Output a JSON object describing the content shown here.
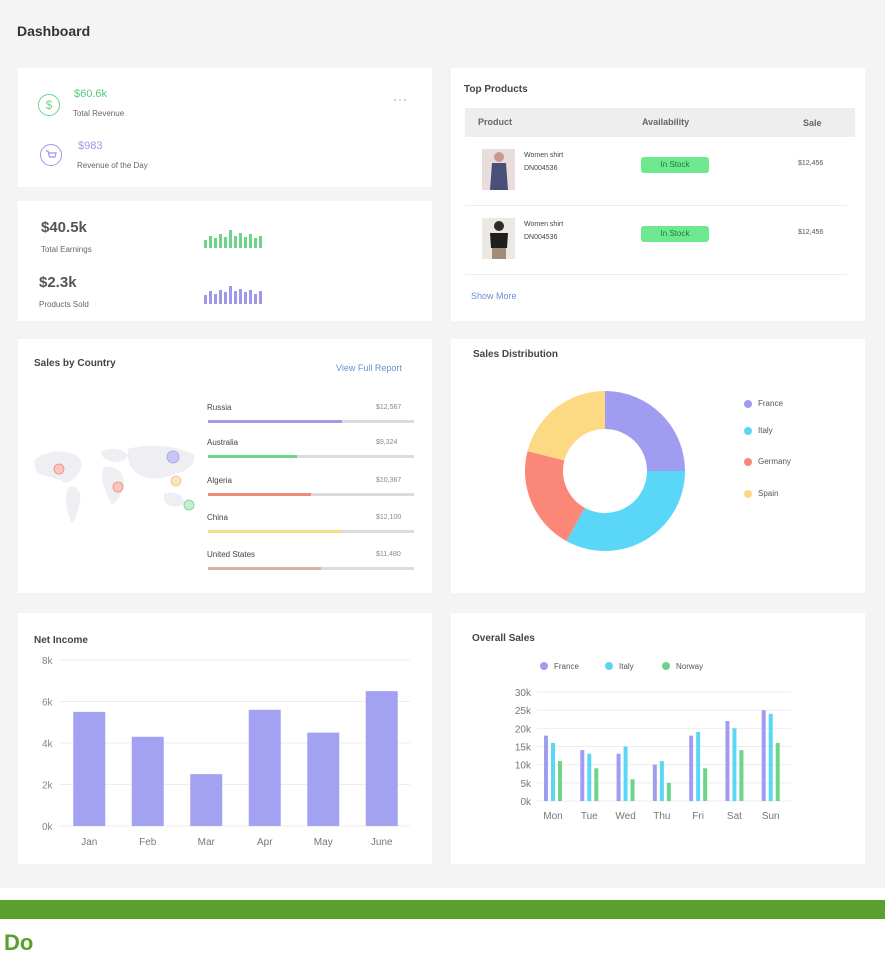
{
  "page": {
    "title": "Dashboard",
    "footer_label": "Do"
  },
  "revenue": {
    "total_value": "$60.6k",
    "total_label": "Total Revenue",
    "day_value": "$983",
    "day_label": "Revenue of the Day",
    "more": "···",
    "icons": [
      "dollar-icon",
      "cart-icon"
    ]
  },
  "earnings": {
    "value": "$40.5k",
    "label": "Total Earnings",
    "sold_value": "$2.3k",
    "sold_label": "Products Sold",
    "earn_spark": [
      6,
      9,
      7,
      10,
      8,
      13,
      9,
      11,
      8,
      10,
      7,
      9
    ],
    "sold_spark": [
      7,
      10,
      8,
      11,
      9,
      14,
      10,
      12,
      9,
      11,
      8,
      10
    ],
    "colors": {
      "earn": "#6dd48a",
      "sold": "#9f97ea"
    }
  },
  "products": {
    "title": "Top Products",
    "columns": [
      "Product",
      "Availability",
      "Sale"
    ],
    "rows": [
      {
        "name": "Women shirt",
        "code": "DN004536",
        "status": "In Stock",
        "sale": "$12,456"
      },
      {
        "name": "Women shirt",
        "code": "DN004536",
        "status": "In Stock",
        "sale": "$12,456"
      }
    ],
    "show_more": "Show More"
  },
  "countries": {
    "title": "Sales by Country",
    "report_link": "View Full Report",
    "items": [
      {
        "name": "Russia",
        "value": "$12,567",
        "fill": 0.65,
        "color": "#a09de6"
      },
      {
        "name": "Australia",
        "value": "$9,324",
        "fill": 0.43,
        "color": "#6dd48a"
      },
      {
        "name": "Algeria",
        "value": "$10,367",
        "fill": 0.5,
        "color": "#f08a7a"
      },
      {
        "name": "China",
        "value": "$12,100",
        "fill": 0.65,
        "color": "#f7d98a"
      },
      {
        "name": "United States",
        "value": "$11,480",
        "fill": 0.55,
        "color": "#d6b4a0"
      }
    ]
  },
  "distribution": {
    "title": "Sales Distribution",
    "legend": [
      {
        "name": "France",
        "color": "#a09cf1"
      },
      {
        "name": "Italy",
        "color": "#5ad6f7"
      },
      {
        "name": "Germany",
        "color": "#fb8778"
      },
      {
        "name": "Spain",
        "color": "#fdd983"
      }
    ]
  },
  "net_income": {
    "title": "Net Income"
  },
  "overall_sales": {
    "title": "Overall Sales"
  },
  "chart_data": [
    {
      "type": "pie",
      "title": "Sales Distribution",
      "categories": [
        "France",
        "Italy",
        "Germany",
        "Spain"
      ],
      "values": [
        25,
        33,
        21,
        21
      ],
      "colors": [
        "#a09cf1",
        "#5ad6f7",
        "#fb8778",
        "#fdd983"
      ],
      "legend": "right"
    },
    {
      "type": "bar",
      "title": "Net Income",
      "categories": [
        "Jan",
        "Feb",
        "Mar",
        "Apr",
        "May",
        "June"
      ],
      "values": [
        5.5,
        4.3,
        2.5,
        5.6,
        4.5,
        6.5
      ],
      "ylim": [
        0,
        8
      ],
      "yticks": [
        "0k",
        "2k",
        "4k",
        "6k",
        "8k"
      ],
      "color": "#a3a1f2",
      "grid": true
    },
    {
      "type": "bar",
      "title": "Overall Sales",
      "categories": [
        "Mon",
        "Tue",
        "Wed",
        "Thu",
        "Fri",
        "Sat",
        "Sun"
      ],
      "series": [
        {
          "name": "France",
          "values": [
            18,
            14,
            13,
            10,
            18,
            22,
            25
          ],
          "color": "#a09cf1"
        },
        {
          "name": "Italy",
          "values": [
            16,
            13,
            15,
            11,
            19,
            20,
            24
          ],
          "color": "#5ad6f7"
        },
        {
          "name": "Norway",
          "values": [
            11,
            9,
            6,
            5,
            9,
            14,
            16
          ],
          "color": "#6dd48a"
        }
      ],
      "ylim": [
        0,
        30
      ],
      "yticks": [
        "0k",
        "5k",
        "10k",
        "15k",
        "20k",
        "25k",
        "30k"
      ],
      "legend": "top",
      "grid": true
    }
  ]
}
